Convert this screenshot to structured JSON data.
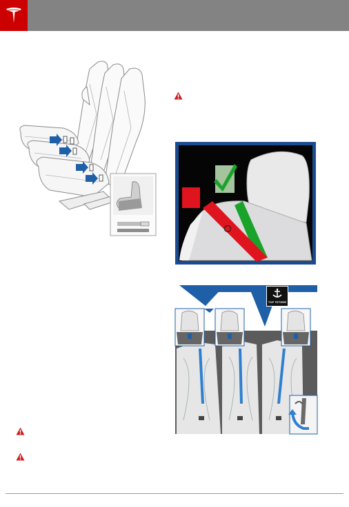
{
  "header": {
    "brand_color": "#cc0000",
    "bar_color": "#838383",
    "logo_icon": "tesla-logo-icon"
  },
  "figures": {
    "seat_anchor_diagram": {
      "icon": "second-row-seats-isofix-anchor-illustration"
    },
    "belt_routing_photo": {
      "icon": "seatbelt-correct-incorrect-routing-illustration"
    },
    "top_tether_diagram": {
      "icon": "rear-seat-top-tether-anchor-illustration",
      "badge_label": "TOP TETHER"
    }
  },
  "warnings": [
    {
      "icon": "warning-triangle-icon"
    },
    {
      "icon": "warning-triangle-icon"
    },
    {
      "icon": "warning-triangle-icon"
    }
  ],
  "colors": {
    "accent_blue": "#1f5fa8",
    "correct_green": "#1aa32b",
    "incorrect_red": "#e0141e",
    "warning_red": "#cc1f1f"
  }
}
